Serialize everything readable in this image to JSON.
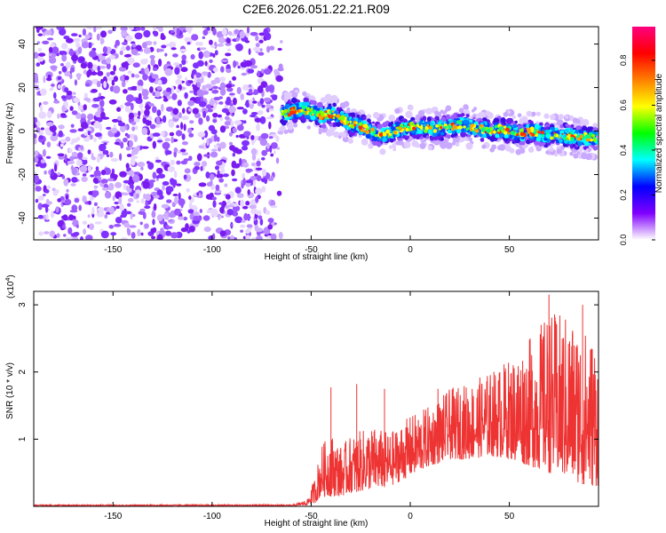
{
  "title": "C2E6.2026.051.22.21.R09",
  "chart_data": [
    {
      "type": "heatmap",
      "xlabel": "Height of straight line (km)",
      "ylabel": "Frequency (Hz)",
      "xlim": [
        -190,
        95
      ],
      "ylim": [
        -50,
        48
      ],
      "xticks": [
        -150,
        -100,
        -50,
        0,
        50
      ],
      "yticks": [
        -40,
        -20,
        0,
        20,
        40
      ],
      "ridge": {
        "description_points_x": [
          -65,
          -60,
          -55,
          -50,
          -45,
          -40,
          -35,
          -30,
          -25,
          -20,
          -15,
          -10,
          -5,
          0,
          5,
          10,
          15,
          20,
          25,
          30,
          35,
          40,
          45,
          50,
          55,
          60,
          65,
          70,
          75,
          80,
          85,
          90,
          95
        ],
        "frequency_hz": [
          8,
          9,
          10,
          9,
          7,
          8,
          6,
          3,
          2,
          0,
          -2,
          -1,
          1,
          2,
          2,
          1,
          1,
          2,
          3,
          2,
          1,
          0,
          1,
          0,
          -1,
          0,
          -1,
          -2,
          -2,
          -2,
          -3,
          -3,
          -3
        ]
      },
      "noise_region_x": [
        -190,
        -65
      ],
      "colorbar": {
        "label": "Normalized spectral amplitude",
        "range": [
          0.0,
          0.95
        ],
        "ticks": [
          "0.0",
          "0.2",
          "0.4",
          "0.6",
          "0.8"
        ],
        "colors": [
          "#ffffff",
          "#8000ff",
          "#0000ff",
          "#00ffff",
          "#00ff00",
          "#ffff00",
          "#ff8000",
          "#ff0000",
          "#ff0080"
        ]
      },
      "grid": false
    },
    {
      "type": "line",
      "xlabel": "Height of straight line (km)",
      "ylabel": "SNR (10 * v/v)",
      "multiplier_label": "(x10",
      "multiplier_exponent": "4",
      "multiplier_close": ")",
      "xlim": [
        -190,
        95
      ],
      "ylim": [
        0,
        3.2
      ],
      "xticks": [
        -150,
        -100,
        -50,
        0,
        50
      ],
      "yticks": [
        1,
        2,
        3
      ],
      "line_color": "#ee3333",
      "envelope": {
        "x": [
          -190,
          -60,
          -52,
          -48,
          -45,
          -40,
          -35,
          -30,
          -20,
          -10,
          0,
          10,
          20,
          30,
          40,
          50,
          60,
          70,
          80,
          90,
          95
        ],
        "upper": [
          0.02,
          0.02,
          0.1,
          0.45,
          0.9,
          1.1,
          0.9,
          1.05,
          1.2,
          1.1,
          1.35,
          1.5,
          1.75,
          1.85,
          2.0,
          2.2,
          2.5,
          2.9,
          2.85,
          2.6,
          2.5
        ],
        "lower": [
          0.0,
          0.0,
          0.02,
          0.05,
          0.15,
          0.15,
          0.15,
          0.2,
          0.25,
          0.3,
          0.45,
          0.6,
          0.7,
          0.7,
          0.75,
          0.7,
          0.6,
          0.5,
          0.4,
          0.3,
          0.3
        ]
      },
      "spikes": [
        {
          "x": -40,
          "y": 1.77
        },
        {
          "x": -27,
          "y": 1.82
        },
        {
          "x": -13,
          "y": 1.75
        },
        {
          "x": 14,
          "y": 1.75
        },
        {
          "x": 70,
          "y": 3.15
        },
        {
          "x": 87,
          "y": 3.0
        }
      ],
      "grid": false
    }
  ]
}
